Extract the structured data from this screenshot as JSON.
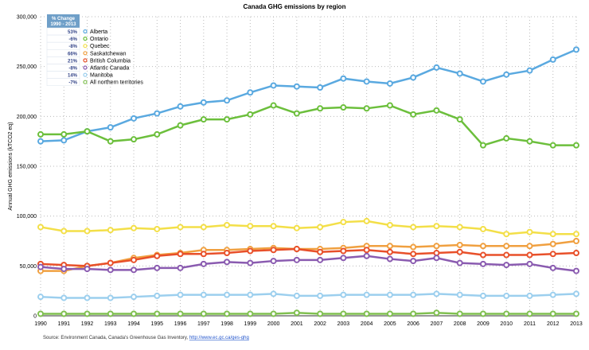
{
  "chart_data": {
    "type": "line",
    "title": "Canada GHG emissions by region",
    "ylabel": "Annual GHG emissions (kTCO2 eq)",
    "xlabel": "",
    "ylim": [
      0,
      300000
    ],
    "yticks": [
      "0",
      "50,000",
      "100,000",
      "150,000",
      "200,000",
      "250,000",
      "300,000"
    ],
    "ytick_values": [
      0,
      50000,
      100000,
      150000,
      200000,
      250000,
      300000
    ],
    "grid": true,
    "legend_placement": "top-left",
    "legend_header": "% Change\n1990 - 2013",
    "legend_header_lines": [
      "% Change",
      "1990 - 2013"
    ],
    "legend_header_color": "#6f9fc8",
    "x": [
      "1990",
      "1991",
      "1992",
      "1993",
      "1994",
      "1995",
      "1996",
      "1997",
      "1998",
      "1999",
      "2000",
      "2001",
      "2002",
      "2003",
      "2004",
      "2005",
      "2006",
      "2007",
      "2008",
      "2009",
      "2010",
      "2011",
      "2012",
      "2013"
    ],
    "series": [
      {
        "name": "Alberta",
        "change": "53%",
        "color": "#5aa9e0",
        "values": [
          175000,
          176000,
          185000,
          189000,
          198000,
          203000,
          210000,
          214000,
          216000,
          224000,
          231000,
          230000,
          229000,
          238000,
          235000,
          233000,
          239000,
          249000,
          243000,
          235000,
          242000,
          246000,
          257000,
          267000
        ]
      },
      {
        "name": "Ontario",
        "change": "-6%",
        "color": "#6cbf3c",
        "values": [
          182000,
          182000,
          185000,
          175000,
          177000,
          182000,
          191000,
          197000,
          197000,
          202000,
          211000,
          203000,
          208000,
          209000,
          208000,
          211000,
          202000,
          206000,
          197000,
          171000,
          178000,
          175000,
          171000,
          171000
        ]
      },
      {
        "name": "Quebec",
        "change": "-8%",
        "color": "#f3df48",
        "values": [
          89000,
          85000,
          85000,
          86000,
          88000,
          87000,
          89000,
          89000,
          91000,
          90000,
          90000,
          88000,
          89000,
          94000,
          95000,
          91000,
          89000,
          90000,
          89000,
          87000,
          82000,
          84000,
          82000,
          82000
        ]
      },
      {
        "name": "Saskatchewan",
        "change": "66%",
        "color": "#f0a040",
        "values": [
          45000,
          45000,
          50000,
          53000,
          58000,
          61000,
          63000,
          66000,
          66000,
          67000,
          68000,
          67000,
          67000,
          68000,
          70000,
          70000,
          69000,
          70000,
          71000,
          70000,
          70000,
          70000,
          72000,
          75000
        ]
      },
      {
        "name": "British Columbia",
        "change": "21%",
        "color": "#e8502a",
        "values": [
          52000,
          51000,
          50000,
          53000,
          56000,
          60000,
          62000,
          62000,
          63000,
          65000,
          66000,
          67000,
          64000,
          65000,
          66000,
          64000,
          62000,
          63000,
          64000,
          61000,
          61000,
          61000,
          62000,
          63000
        ]
      },
      {
        "name": "Atlantic Canada",
        "change": "-8%",
        "color": "#8a5bb0",
        "values": [
          49000,
          47000,
          47000,
          46000,
          46000,
          48000,
          48000,
          52000,
          54000,
          53000,
          55000,
          56000,
          56000,
          58000,
          60000,
          57000,
          55000,
          58000,
          53000,
          52000,
          51000,
          52000,
          48000,
          45000
        ]
      },
      {
        "name": "Manitoba",
        "change": "14%",
        "color": "#9ccfee",
        "values": [
          19000,
          18000,
          18000,
          18000,
          19000,
          20000,
          21000,
          21000,
          21000,
          21000,
          22000,
          20000,
          20000,
          21000,
          21000,
          21000,
          21000,
          22000,
          21000,
          20000,
          20000,
          20000,
          21000,
          22000
        ]
      },
      {
        "name": "All northern territories",
        "change": "-7%",
        "color": "#80c050",
        "values": [
          2000,
          2000,
          2000,
          2000,
          2000,
          2000,
          2000,
          2000,
          2000,
          2000,
          2000,
          3000,
          2000,
          2000,
          2000,
          2000,
          2000,
          3000,
          2000,
          2000,
          2000,
          2000,
          2000,
          2000
        ]
      }
    ]
  },
  "source": {
    "text": "Source: Environment Canada, Canada's Greenhouse Gas Inventory, ",
    "link": "http://www.ec.gc.ca/ges-ghg"
  }
}
